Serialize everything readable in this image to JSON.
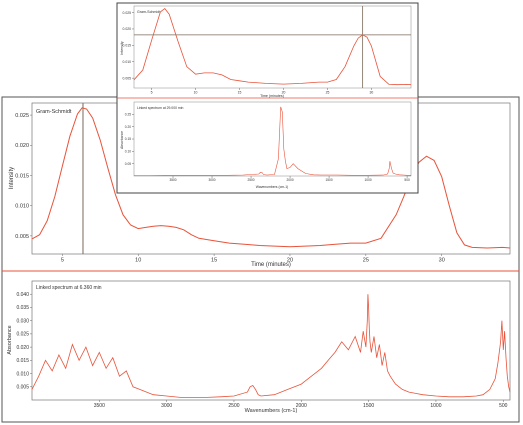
{
  "colors": {
    "trace": "#e8533a",
    "frame": "#555555",
    "crosshair": "#7a6a5a",
    "background": "#ffffff"
  },
  "chart_data": [
    {
      "id": "main_gram_schmidt",
      "type": "line",
      "title": "Gram-Schmidt",
      "xlabel": "Time (minutes)",
      "ylabel": "Intensity",
      "xlim": [
        3,
        34.5
      ],
      "ylim": [
        0.002,
        0.027
      ],
      "xticks": [
        5,
        10,
        15,
        20,
        25,
        30
      ],
      "yticks": [
        0.005,
        0.01,
        0.015,
        0.02,
        0.025
      ],
      "ytick_labels": [
        "0.005",
        "0.010",
        "0.015",
        "0.020",
        "0.025"
      ],
      "grid": false,
      "cursor_x": 6.36,
      "x": [
        3.0,
        3.5,
        4.0,
        4.5,
        5.0,
        5.5,
        6.0,
        6.3,
        6.6,
        7.0,
        7.5,
        8.0,
        8.5,
        9.0,
        9.5,
        10.0,
        10.5,
        11.0,
        11.5,
        12.0,
        12.5,
        13.0,
        13.5,
        14.0,
        15.0,
        16.0,
        17.0,
        18.0,
        19.0,
        20.0,
        21.0,
        22.0,
        23.0,
        24.0,
        25.0,
        26.0,
        27.0,
        27.5,
        28.0,
        28.5,
        29.0,
        29.5,
        30.0,
        30.5,
        31.0,
        31.5,
        32.0,
        33.0,
        34.0,
        34.5
      ],
      "y": [
        0.0045,
        0.0052,
        0.0075,
        0.0115,
        0.0165,
        0.0215,
        0.0252,
        0.0262,
        0.026,
        0.0245,
        0.0208,
        0.0162,
        0.0118,
        0.0085,
        0.0068,
        0.0062,
        0.0064,
        0.0066,
        0.0067,
        0.0066,
        0.0064,
        0.006,
        0.0052,
        0.0046,
        0.0042,
        0.0038,
        0.0036,
        0.0034,
        0.0033,
        0.0032,
        0.0033,
        0.0034,
        0.0036,
        0.0038,
        0.0038,
        0.0046,
        0.0085,
        0.0115,
        0.0148,
        0.0172,
        0.0182,
        0.0175,
        0.0148,
        0.01,
        0.0055,
        0.0035,
        0.0031,
        0.003,
        0.0031,
        0.003
      ]
    },
    {
      "id": "main_spectrum",
      "type": "line",
      "title": "Linked spectrum at 6.360 min",
      "xlabel": "Wavenumbers (cm-1)",
      "ylabel": "Absorbance",
      "xlim": [
        4000,
        450
      ],
      "ylim": [
        0,
        0.045
      ],
      "xticks": [
        3500,
        3000,
        2500,
        2000,
        1500,
        1000,
        500
      ],
      "yticks": [
        0.005,
        0.01,
        0.015,
        0.02,
        0.025,
        0.03,
        0.035,
        0.04
      ],
      "ytick_labels": [
        "0.005",
        "0.010",
        "0.015",
        "0.020",
        "0.025",
        "0.030",
        "0.035",
        "0.040"
      ],
      "grid": false,
      "x": [
        4000,
        3950,
        3900,
        3850,
        3800,
        3750,
        3700,
        3650,
        3600,
        3550,
        3500,
        3450,
        3400,
        3350,
        3300,
        3250,
        3200,
        3100,
        3000,
        2900,
        2800,
        2700,
        2600,
        2500,
        2400,
        2380,
        2360,
        2340,
        2320,
        2300,
        2200,
        2100,
        2000,
        1950,
        1900,
        1850,
        1800,
        1750,
        1700,
        1650,
        1600,
        1560,
        1540,
        1520,
        1510,
        1505,
        1500,
        1495,
        1490,
        1480,
        1460,
        1440,
        1420,
        1400,
        1380,
        1360,
        1340,
        1300,
        1250,
        1200,
        1150,
        1100,
        1000,
        900,
        800,
        700,
        650,
        600,
        560,
        540,
        520,
        510,
        500,
        490,
        480,
        470,
        460,
        450
      ],
      "y": [
        0.004,
        0.009,
        0.015,
        0.011,
        0.017,
        0.012,
        0.021,
        0.015,
        0.02,
        0.013,
        0.018,
        0.012,
        0.016,
        0.009,
        0.011,
        0.005,
        0.004,
        0.002,
        0.0015,
        0.001,
        0.001,
        0.001,
        0.0012,
        0.0015,
        0.003,
        0.005,
        0.0055,
        0.004,
        0.002,
        0.0015,
        0.002,
        0.004,
        0.006,
        0.008,
        0.01,
        0.012,
        0.015,
        0.018,
        0.022,
        0.019,
        0.024,
        0.018,
        0.026,
        0.02,
        0.03,
        0.04,
        0.035,
        0.027,
        0.022,
        0.018,
        0.024,
        0.016,
        0.021,
        0.013,
        0.018,
        0.011,
        0.009,
        0.006,
        0.004,
        0.003,
        0.0025,
        0.002,
        0.0015,
        0.0012,
        0.0012,
        0.0015,
        0.002,
        0.004,
        0.008,
        0.014,
        0.022,
        0.03,
        0.019,
        0.026,
        0.016,
        0.009,
        0.005,
        0.003
      ]
    },
    {
      "id": "inset_gram_schmidt",
      "type": "line",
      "title": "Gram-Schmidt",
      "xlabel": "Time (minutes)",
      "ylabel": "Intensity",
      "xlim": [
        3,
        34.5
      ],
      "ylim": [
        0.002,
        0.027
      ],
      "xticks": [
        5,
        10,
        15,
        20,
        25,
        30
      ],
      "yticks": [
        0.005,
        0.01,
        0.015,
        0.02,
        0.025
      ],
      "ytick_labels": [
        "0.005",
        "0.010",
        "0.015",
        "0.020",
        "0.025"
      ],
      "grid": false,
      "cursor_x": 29.0,
      "cursor_y": 0.0182,
      "x": [
        3.0,
        4.0,
        5.0,
        6.0,
        6.5,
        7.0,
        8.0,
        9.0,
        10.0,
        11.0,
        12.0,
        13.0,
        14.0,
        15.0,
        16.0,
        18.0,
        20.0,
        22.0,
        24.0,
        25.0,
        26.0,
        27.0,
        28.0,
        28.5,
        29.0,
        29.5,
        30.0,
        31.0,
        32.0,
        33.0,
        34.0,
        34.5
      ],
      "y": [
        0.0045,
        0.0075,
        0.0165,
        0.0252,
        0.0262,
        0.0245,
        0.0162,
        0.0085,
        0.0062,
        0.0066,
        0.0066,
        0.006,
        0.0046,
        0.0042,
        0.0038,
        0.0034,
        0.0032,
        0.0034,
        0.0038,
        0.0038,
        0.0046,
        0.0085,
        0.0148,
        0.0172,
        0.0182,
        0.0175,
        0.0148,
        0.0055,
        0.0031,
        0.003,
        0.0031,
        0.003
      ]
    },
    {
      "id": "inset_spectrum",
      "type": "line",
      "title": "Linked spectrum at 29.000 min",
      "xlabel": "Wavenumbers (cm-1)",
      "ylabel": "Absorbance",
      "xlim": [
        4000,
        450
      ],
      "ylim": [
        0,
        0.3
      ],
      "xticks": [
        3500,
        3000,
        2500,
        2000,
        1500,
        1000,
        500
      ],
      "yticks": [
        0.05,
        0.1,
        0.15,
        0.2,
        0.25
      ],
      "ytick_labels": [
        "0.05",
        "0.10",
        "0.15",
        "0.20",
        "0.25"
      ],
      "grid": false,
      "x": [
        4000,
        3800,
        3600,
        3400,
        3200,
        3000,
        2800,
        2600,
        2400,
        2380,
        2360,
        2340,
        2300,
        2200,
        2150,
        2120,
        2100,
        2080,
        2060,
        2040,
        2000,
        1960,
        1900,
        1850,
        1800,
        1700,
        1600,
        1400,
        1200,
        1000,
        800,
        750,
        730,
        720,
        700,
        680,
        650,
        600,
        550,
        500,
        450
      ],
      "y": [
        0.002,
        0.002,
        0.003,
        0.003,
        0.003,
        0.003,
        0.003,
        0.004,
        0.008,
        0.015,
        0.014,
        0.006,
        0.004,
        0.006,
        0.07,
        0.28,
        0.26,
        0.11,
        0.06,
        0.03,
        0.035,
        0.05,
        0.03,
        0.02,
        0.01,
        0.005,
        0.004,
        0.004,
        0.003,
        0.003,
        0.004,
        0.008,
        0.03,
        0.06,
        0.03,
        0.012,
        0.008,
        0.005,
        0.004,
        0.003,
        0.003
      ]
    }
  ]
}
